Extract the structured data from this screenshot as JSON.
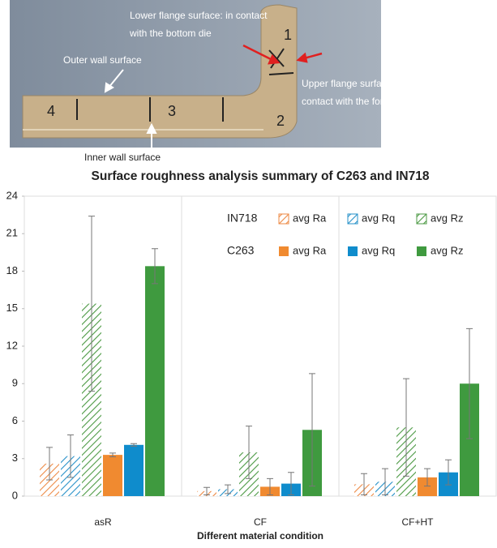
{
  "photo": {
    "annotations": [
      {
        "lines": [
          "Lower flange surface: in contact",
          "with the bottom die"
        ]
      },
      {
        "lines": [
          "Outer wall surface"
        ]
      },
      {
        "lines": [
          "Inner wall surface"
        ]
      },
      {
        "lines": [
          "Upper flange surface: in",
          "contact with the forming tool"
        ]
      }
    ],
    "part_labels": [
      "1",
      "2",
      "3",
      "4"
    ]
  },
  "chart_data": {
    "type": "bar",
    "title": "Surface roughness analysis summary of C263 and IN718",
    "x_label": "Different material condition",
    "categories": [
      "asR",
      "CF",
      "CF+HT"
    ],
    "ylim": [
      0,
      24
    ],
    "yticks": [
      0,
      3,
      6,
      9,
      12,
      15,
      18,
      21,
      24
    ],
    "groups": [
      {
        "name": "IN718",
        "hatch": true,
        "series": [
          {
            "name": "avg Ra",
            "color": "#ed8a45",
            "values": [
              2.6,
              0.4,
              0.95
            ],
            "errors": [
              1.3,
              0.3,
              0.85
            ]
          },
          {
            "name": "avg Rq",
            "color": "#2590c8",
            "values": [
              3.2,
              0.55,
              1.15
            ],
            "errors": [
              1.7,
              0.35,
              1.05
            ]
          },
          {
            "name": "avg Rz",
            "color": "#4c9a44",
            "values": [
              15.4,
              3.5,
              5.5
            ],
            "errors": [
              7,
              2.1,
              3.9
            ]
          }
        ]
      },
      {
        "name": "C263",
        "hatch": false,
        "series": [
          {
            "name": "avg Ra",
            "color": "#f08a30",
            "values": [
              3.3,
              0.75,
              1.5
            ],
            "errors": [
              0.15,
              0.65,
              0.7
            ]
          },
          {
            "name": "avg Rq",
            "color": "#0f8ccc",
            "values": [
              4.1,
              1.0,
              1.9
            ],
            "errors": [
              0.1,
              0.9,
              1.0
            ]
          },
          {
            "name": "avg Rz",
            "color": "#3f9a3f",
            "values": [
              18.4,
              5.3,
              9.0
            ],
            "errors": [
              1.4,
              4.5,
              4.4
            ]
          }
        ]
      }
    ]
  }
}
